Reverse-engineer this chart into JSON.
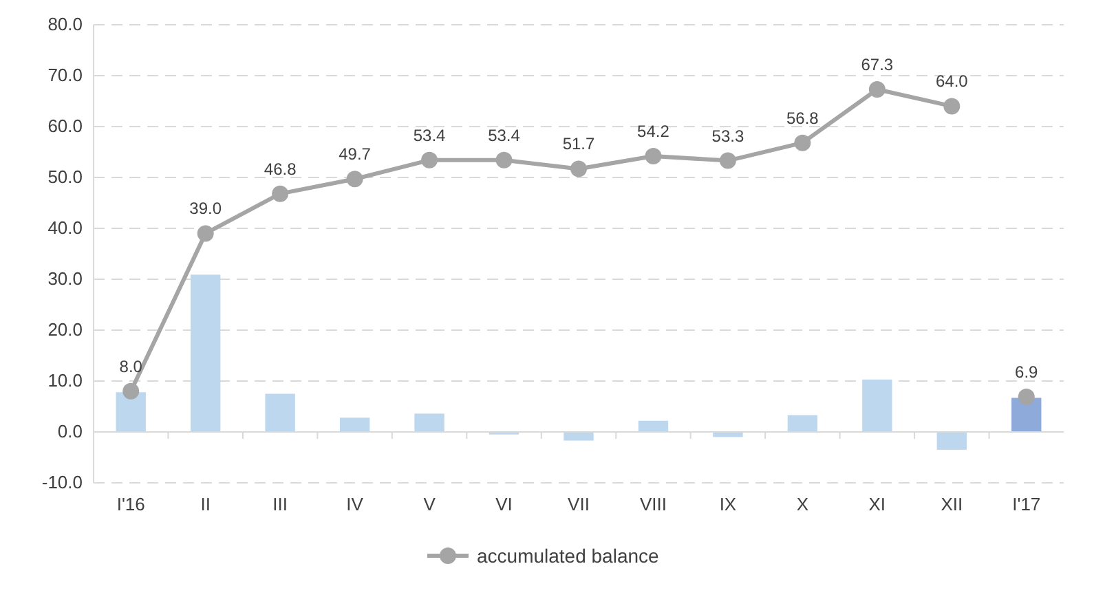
{
  "chart_data": {
    "type": "bar",
    "categories": [
      "I'16",
      "II",
      "III",
      "IV",
      "V",
      "VI",
      "VII",
      "VIII",
      "IX",
      "X",
      "XI",
      "XII",
      "I'17"
    ],
    "series": [
      {
        "colors": [
          "#bdd7ee",
          "#bdd7ee",
          "#bdd7ee",
          "#bdd7ee",
          "#bdd7ee",
          "#bdd7ee",
          "#bdd7ee",
          "#bdd7ee",
          "#bdd7ee",
          "#bdd7ee",
          "#bdd7ee",
          "#bdd7ee",
          "#8eaadb"
        ],
        "values": [
          7.8,
          30.9,
          7.5,
          2.8,
          3.6,
          -0.5,
          -1.7,
          2.2,
          -1.0,
          3.3,
          10.3,
          -3.5,
          6.7
        ]
      },
      {
        "type": "line",
        "name": "accumulated balance",
        "color": "#a5a5a5",
        "marker": "circle",
        "values": [
          8.0,
          39.0,
          46.8,
          49.7,
          53.4,
          53.4,
          51.7,
          54.2,
          53.3,
          56.8,
          67.3,
          64.0,
          null
        ],
        "value_labels": [
          "8.0",
          "39.0",
          "46.8",
          "49.7",
          "53.4",
          "53.4",
          "51.7",
          "54.2",
          "53.3",
          "56.8",
          "67.3",
          "64.0",
          null
        ]
      },
      {
        "type": "scatter",
        "color": "#a5a5a5",
        "marker": "circle",
        "values": [
          null,
          null,
          null,
          null,
          null,
          null,
          null,
          null,
          null,
          null,
          null,
          null,
          6.9
        ],
        "value_labels": [
          null,
          null,
          null,
          null,
          null,
          null,
          null,
          null,
          null,
          null,
          null,
          null,
          "6.9"
        ]
      }
    ],
    "ylim": [
      -10,
      80
    ],
    "yticks": [
      {
        "value": -10,
        "label": "-10.0"
      },
      {
        "value": 0,
        "label": "0.0"
      },
      {
        "value": 10,
        "label": "10.0"
      },
      {
        "value": 20,
        "label": "20.0"
      },
      {
        "value": 30,
        "label": "30.0"
      },
      {
        "value": 40,
        "label": "40.0"
      },
      {
        "value": 50,
        "label": "50.0"
      },
      {
        "value": 60,
        "label": "60.0"
      },
      {
        "value": 70,
        "label": "70.0"
      },
      {
        "value": 80,
        "label": "80.0"
      }
    ],
    "grid": "y",
    "legend": "bottom"
  }
}
